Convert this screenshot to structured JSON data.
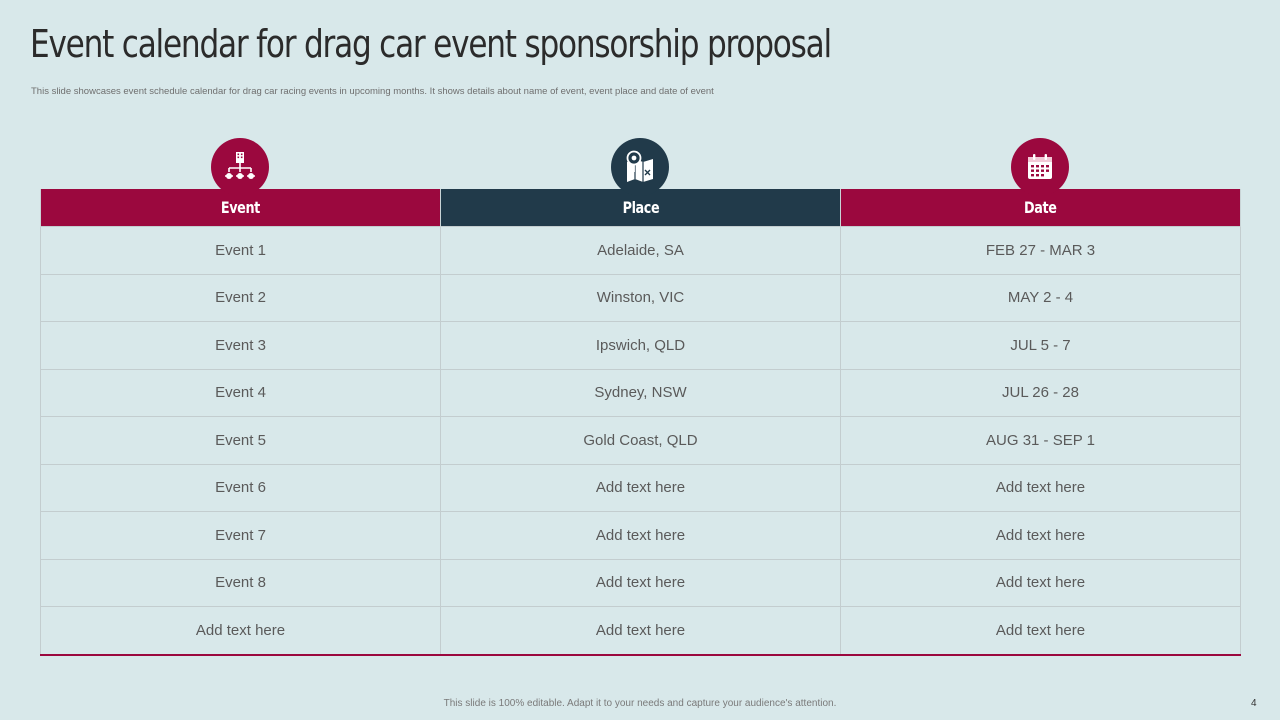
{
  "slide": {
    "title": "Event calendar for drag car event sponsorship proposal",
    "subtitle": "This slide showcases event schedule calendar for drag car racing events in upcoming months. It shows details about name of event, event place and date of event",
    "footer_note": "This slide is 100% editable. Adapt it to your needs and capture your audience's attention.",
    "page_number": "4"
  },
  "icons": {
    "event": "organization-hierarchy-icon",
    "place": "map-location-icon",
    "date": "calendar-icon"
  },
  "colors": {
    "background": "#d8e8ea",
    "accent_crimson": "#9b083e",
    "accent_navy": "#213a4a"
  },
  "table": {
    "headers": {
      "event": "Event",
      "place": "Place",
      "date": "Date"
    },
    "rows": [
      {
        "event": "Event 1",
        "place": "Adelaide,  SA",
        "date": "FEB 27 - MAR 3"
      },
      {
        "event": "Event 2",
        "place": "Winston, VIC",
        "date": "MAY  2 - 4"
      },
      {
        "event": "Event 3",
        "place": "Ipswich, QLD",
        "date": "JUL 5 - 7"
      },
      {
        "event": "Event 4",
        "place": "Sydney, NSW",
        "date": "JUL 26 - 28"
      },
      {
        "event": "Event 5",
        "place": "Gold Coast, QLD",
        "date": "AUG 31 - SEP 1"
      },
      {
        "event": "Event 6",
        "place": "Add text here",
        "date": "Add text here"
      },
      {
        "event": "Event 7",
        "place": "Add text here",
        "date": "Add text here"
      },
      {
        "event": "Event 8",
        "place": "Add text here",
        "date": "Add text here"
      },
      {
        "event": "Add text here",
        "place": "Add text here",
        "date": "Add text here"
      }
    ]
  }
}
